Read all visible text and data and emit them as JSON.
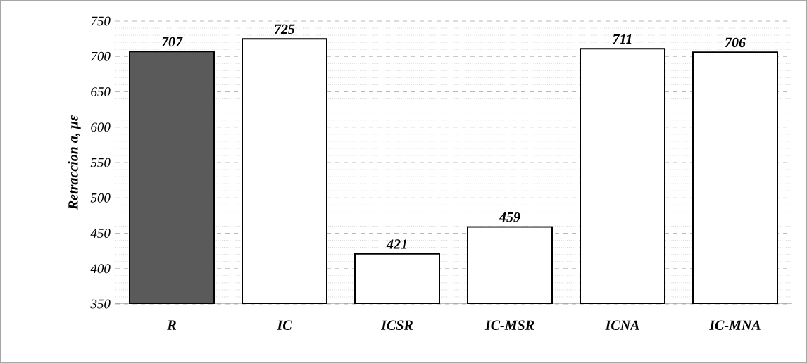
{
  "chart_data": {
    "type": "bar",
    "ylabel": "Retraccion a, με",
    "categories": [
      "R",
      "IC",
      "ICSR",
      "IC-MSR",
      "ICNA",
      "IC-MNA"
    ],
    "values": [
      707,
      725,
      421,
      459,
      711,
      706
    ],
    "colors": [
      "#5a5a5a",
      "#ffffff",
      "#ffffff",
      "#ffffff",
      "#ffffff",
      "#ffffff"
    ],
    "ylim": [
      350,
      750
    ],
    "yticks": [
      350,
      400,
      450,
      500,
      550,
      600,
      650,
      700,
      750
    ],
    "grid": "y",
    "data_labels": true
  }
}
